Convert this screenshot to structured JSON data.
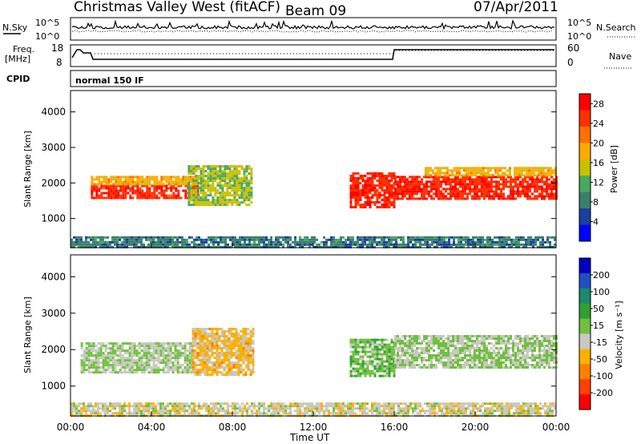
{
  "header": {
    "title": "Christmas Valley West (fitACF)",
    "beam": "Beam 09",
    "date": "07/Apr/2011"
  },
  "top_panels": {
    "nsky_label": "N.Sky",
    "nsearch_label": "N.Search",
    "noise_ticks_left": [
      "10^5",
      "10^0"
    ],
    "noise_ticks_right": [
      "10^5",
      "10^0"
    ],
    "freq_label_1": "Freq.",
    "freq_label_2": "[MHz]",
    "freq_ticks": [
      "18",
      "8"
    ],
    "nave_label": "Nave",
    "nave_ticks": [
      "60",
      "0"
    ],
    "cpid_label": "CPID",
    "cpid_value": "normal 150 IF"
  },
  "colors": {
    "power": [
      "#0000ff",
      "#1a3fa0",
      "#3a7f6a",
      "#48a860",
      "#c8c000",
      "#ffaa00",
      "#ff7000",
      "#ff3000",
      "#ff0000"
    ],
    "velocity": [
      "#ff0000",
      "#ff4000",
      "#ff8000",
      "#ffb000",
      "#c8c8c0",
      "#70c040",
      "#30a030",
      "#1a8a6a",
      "#2050c0",
      "#0000c0"
    ]
  },
  "chart_data": [
    {
      "type": "heatmap",
      "name": "power-panel",
      "xlabel": "Time UT",
      "ylabel": "Slant Range [km]",
      "x_ticks": [
        "00:00",
        "04:00",
        "08:00",
        "12:00",
        "16:00",
        "20:00",
        "00:00"
      ],
      "y_ticks": [
        1000,
        2000,
        3000,
        4000
      ],
      "xlim_hours": [
        0,
        24
      ],
      "ylim_km": [
        180,
        4600
      ],
      "colorbar": {
        "label": "Power [dB]",
        "ticks": [
          4,
          8,
          12,
          16,
          20,
          24,
          28
        ],
        "range": [
          0,
          30
        ]
      },
      "regions": [
        {
          "t0": 1.0,
          "t1": 6.3,
          "r0": 1550,
          "r1": 1950,
          "level": 26
        },
        {
          "t0": 1.0,
          "t1": 6.3,
          "r0": 1950,
          "r1": 2200,
          "level": 18
        },
        {
          "t0": 5.8,
          "t1": 9.0,
          "r0": 1400,
          "r1": 2500,
          "level": 14
        },
        {
          "t0": 13.8,
          "t1": 16.0,
          "r0": 1350,
          "r1": 2300,
          "level": 26
        },
        {
          "t0": 16.0,
          "t1": 24.0,
          "r0": 1550,
          "r1": 2200,
          "level": 26
        },
        {
          "t0": 17.5,
          "t1": 24.0,
          "r0": 2200,
          "r1": 2450,
          "level": 18
        },
        {
          "t0": 0.0,
          "t1": 24.0,
          "r0": 200,
          "r1": 500,
          "level": 8
        }
      ]
    },
    {
      "type": "heatmap",
      "name": "velocity-panel",
      "xlabel": "Time UT",
      "ylabel": "Slant Range [km]",
      "x_ticks": [
        "00:00",
        "04:00",
        "08:00",
        "12:00",
        "16:00",
        "20:00",
        "00:00"
      ],
      "y_ticks": [
        1000,
        2000,
        3000,
        4000
      ],
      "xlim_hours": [
        0,
        24
      ],
      "ylim_km": [
        180,
        4600
      ],
      "colorbar": {
        "label": "Velocity [m s⁻¹]",
        "ticks": [
          200,
          100,
          50,
          15,
          -15,
          -50,
          -100,
          -200
        ],
        "range": [
          -250,
          250
        ]
      },
      "regions": [
        {
          "t0": 0.5,
          "t1": 6.0,
          "r0": 1400,
          "r1": 2200,
          "level": 0
        },
        {
          "t0": 6.0,
          "t1": 9.0,
          "r0": 1300,
          "r1": 2600,
          "level": -60
        },
        {
          "t0": 13.8,
          "t1": 16.0,
          "r0": 1300,
          "r1": 2300,
          "level": 30
        },
        {
          "t0": 16.0,
          "t1": 24.0,
          "r0": 1500,
          "r1": 2400,
          "level": 0
        },
        {
          "t0": 0.0,
          "t1": 24.0,
          "r0": 200,
          "r1": 550,
          "level": -30
        }
      ]
    }
  ]
}
